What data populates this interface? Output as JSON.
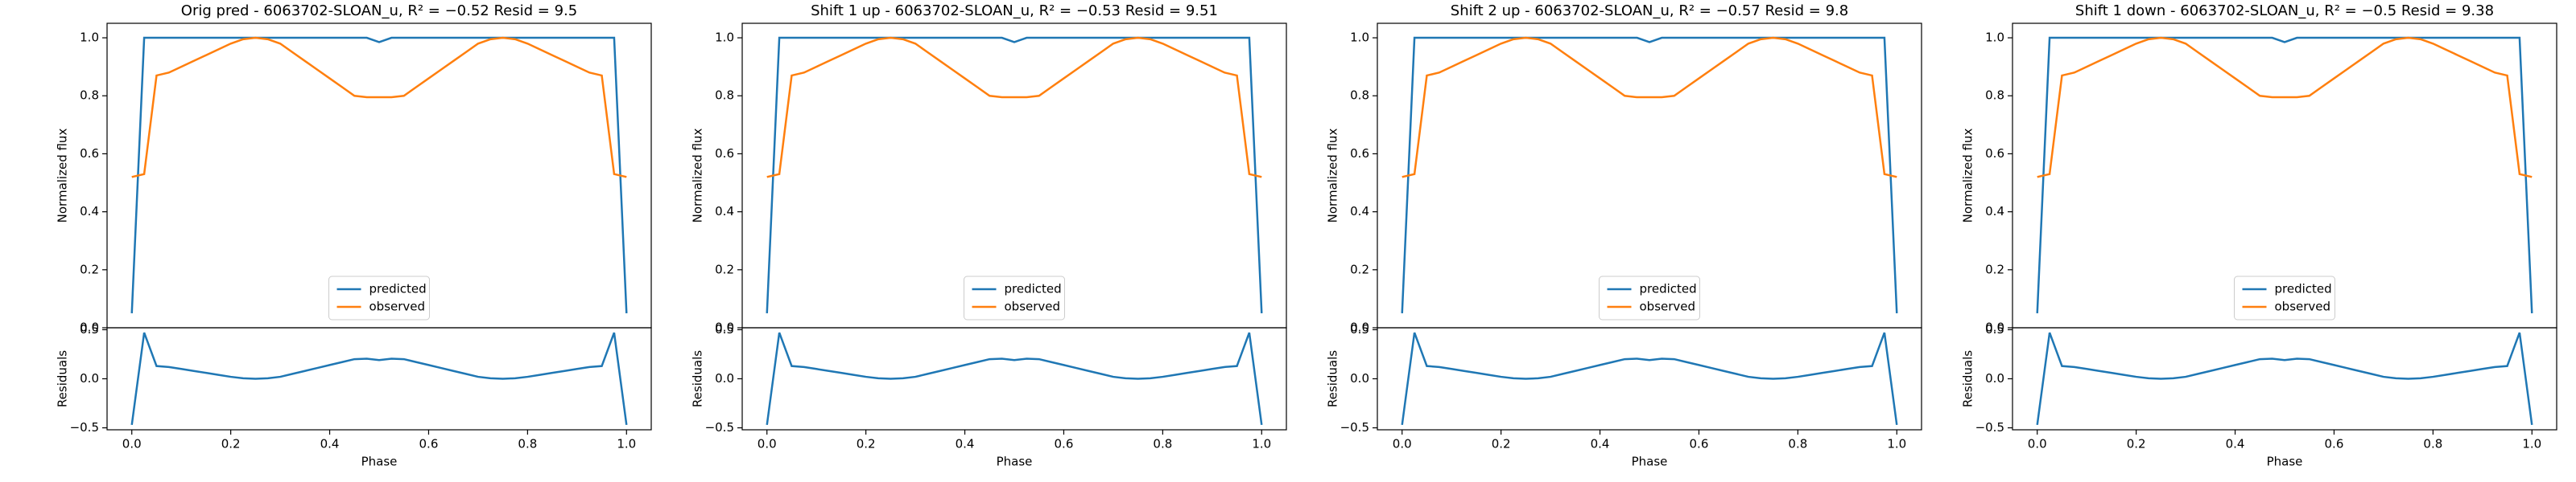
{
  "chart_data": [
    {
      "type": "line",
      "title": "Orig pred - 6063702-SLOAN_u, R² = −0.52 Resid = 9.5",
      "y_label": "Normalized flux",
      "legend": "lower center",
      "x": [
        0,
        0.025,
        0.05,
        0.075,
        0.1,
        0.125,
        0.15,
        0.175,
        0.2,
        0.225,
        0.25,
        0.275,
        0.3,
        0.325,
        0.35,
        0.375,
        0.4,
        0.425,
        0.45,
        0.475,
        0.5,
        0.525,
        0.55,
        0.575,
        0.6,
        0.625,
        0.65,
        0.675,
        0.7,
        0.725,
        0.75,
        0.775,
        0.8,
        0.825,
        0.85,
        0.875,
        0.9,
        0.925,
        0.95,
        0.975,
        1
      ],
      "series": [
        {
          "name": "predicted",
          "color": "#1f77b4",
          "values": [
            0.05,
            1,
            1,
            1,
            1,
            1,
            1,
            1,
            1,
            1,
            1,
            1,
            1,
            1,
            1,
            1,
            1,
            1,
            1,
            1,
            0.985,
            1,
            1,
            1,
            1,
            1,
            1,
            1,
            1,
            1,
            1,
            1,
            1,
            1,
            1,
            1,
            1,
            1,
            1,
            1,
            0.05
          ]
        },
        {
          "name": "observed",
          "color": "#ff7f0e",
          "values": [
            0.52,
            0.53,
            0.87,
            0.88,
            0.9,
            0.92,
            0.94,
            0.96,
            0.98,
            0.995,
            1,
            0.995,
            0.98,
            0.95,
            0.92,
            0.89,
            0.86,
            0.83,
            0.8,
            0.795,
            0.795,
            0.795,
            0.8,
            0.83,
            0.86,
            0.89,
            0.92,
            0.95,
            0.98,
            0.995,
            1,
            0.995,
            0.98,
            0.96,
            0.94,
            0.92,
            0.9,
            0.88,
            0.87,
            0.53,
            0.52
          ]
        }
      ],
      "xlim": [
        -0.05,
        1.05
      ],
      "ylim": [
        0,
        1.05
      ],
      "yticks": [
        {
          "value": 0,
          "label": "0.0"
        },
        0.2,
        0.4,
        0.6,
        0.8,
        {
          "value": 1,
          "label": "1.0"
        }
      ]
    },
    {
      "type": "line",
      "x_label": "Phase",
      "y_label": "Residuals",
      "x": [
        0,
        0.025,
        0.05,
        0.075,
        0.1,
        0.125,
        0.15,
        0.175,
        0.2,
        0.225,
        0.25,
        0.275,
        0.3,
        0.325,
        0.35,
        0.375,
        0.4,
        0.425,
        0.45,
        0.475,
        0.5,
        0.525,
        0.55,
        0.575,
        0.6,
        0.625,
        0.65,
        0.675,
        0.7,
        0.725,
        0.75,
        0.775,
        0.8,
        0.825,
        0.85,
        0.875,
        0.9,
        0.925,
        0.95,
        0.975,
        1
      ],
      "series": [
        {
          "color": "#1f77b4",
          "values": [
            -0.47,
            0.47,
            0.13,
            0.12,
            0.1,
            0.08,
            0.06,
            0.04,
            0.02,
            0.005,
            0,
            0.005,
            0.02,
            0.05,
            0.08,
            0.11,
            0.14,
            0.17,
            0.2,
            0.205,
            0.19,
            0.205,
            0.2,
            0.17,
            0.14,
            0.11,
            0.08,
            0.05,
            0.02,
            0.005,
            0,
            0.005,
            0.02,
            0.04,
            0.06,
            0.08,
            0.1,
            0.12,
            0.13,
            0.47,
            -0.47
          ]
        }
      ],
      "xlim": [
        -0.05,
        1.05
      ],
      "xticks": [
        {
          "value": 0,
          "label": "0.0"
        },
        0.2,
        0.4,
        0.6,
        0.8,
        {
          "value": 1,
          "label": "1.0"
        }
      ],
      "ylim": [
        -0.52,
        0.52
      ],
      "yticks": [
        {
          "value": -0.5,
          "label": "−0.5"
        },
        {
          "value": 0,
          "label": "0.0"
        },
        0.5
      ]
    },
    {
      "type": "line",
      "title": "Shift 1 up - 6063702-SLOAN_u, R² = −0.53 Resid = 9.51",
      "y_label": "Normalized flux",
      "legend": "lower center",
      "x": [
        0,
        0.025,
        0.05,
        0.075,
        0.1,
        0.125,
        0.15,
        0.175,
        0.2,
        0.225,
        0.25,
        0.275,
        0.3,
        0.325,
        0.35,
        0.375,
        0.4,
        0.425,
        0.45,
        0.475,
        0.5,
        0.525,
        0.55,
        0.575,
        0.6,
        0.625,
        0.65,
        0.675,
        0.7,
        0.725,
        0.75,
        0.775,
        0.8,
        0.825,
        0.85,
        0.875,
        0.9,
        0.925,
        0.95,
        0.975,
        1
      ],
      "series": [
        {
          "name": "predicted",
          "color": "#1f77b4",
          "values": [
            0.05,
            1,
            1,
            1,
            1,
            1,
            1,
            1,
            1,
            1,
            1,
            1,
            1,
            1,
            1,
            1,
            1,
            1,
            1,
            1,
            0.985,
            1,
            1,
            1,
            1,
            1,
            1,
            1,
            1,
            1,
            1,
            1,
            1,
            1,
            1,
            1,
            1,
            1,
            1,
            1,
            0.05
          ]
        },
        {
          "name": "observed",
          "color": "#ff7f0e",
          "values": [
            0.52,
            0.53,
            0.87,
            0.88,
            0.9,
            0.92,
            0.94,
            0.96,
            0.98,
            0.995,
            1,
            0.995,
            0.98,
            0.95,
            0.92,
            0.89,
            0.86,
            0.83,
            0.8,
            0.795,
            0.795,
            0.795,
            0.8,
            0.83,
            0.86,
            0.89,
            0.92,
            0.95,
            0.98,
            0.995,
            1,
            0.995,
            0.98,
            0.96,
            0.94,
            0.92,
            0.9,
            0.88,
            0.87,
            0.53,
            0.52
          ]
        }
      ],
      "xlim": [
        -0.05,
        1.05
      ],
      "ylim": [
        0,
        1.05
      ],
      "yticks": [
        {
          "value": 0,
          "label": "0.0"
        },
        0.2,
        0.4,
        0.6,
        0.8,
        {
          "value": 1,
          "label": "1.0"
        }
      ]
    },
    {
      "type": "line",
      "x_label": "Phase",
      "y_label": "Residuals",
      "x": [
        0,
        0.025,
        0.05,
        0.075,
        0.1,
        0.125,
        0.15,
        0.175,
        0.2,
        0.225,
        0.25,
        0.275,
        0.3,
        0.325,
        0.35,
        0.375,
        0.4,
        0.425,
        0.45,
        0.475,
        0.5,
        0.525,
        0.55,
        0.575,
        0.6,
        0.625,
        0.65,
        0.675,
        0.7,
        0.725,
        0.75,
        0.775,
        0.8,
        0.825,
        0.85,
        0.875,
        0.9,
        0.925,
        0.95,
        0.975,
        1
      ],
      "series": [
        {
          "color": "#1f77b4",
          "values": [
            -0.47,
            0.47,
            0.13,
            0.12,
            0.1,
            0.08,
            0.06,
            0.04,
            0.02,
            0.005,
            0,
            0.005,
            0.02,
            0.05,
            0.08,
            0.11,
            0.14,
            0.17,
            0.2,
            0.205,
            0.19,
            0.205,
            0.2,
            0.17,
            0.14,
            0.11,
            0.08,
            0.05,
            0.02,
            0.005,
            0,
            0.005,
            0.02,
            0.04,
            0.06,
            0.08,
            0.1,
            0.12,
            0.13,
            0.47,
            -0.47
          ]
        }
      ],
      "xlim": [
        -0.05,
        1.05
      ],
      "xticks": [
        {
          "value": 0,
          "label": "0.0"
        },
        0.2,
        0.4,
        0.6,
        0.8,
        {
          "value": 1,
          "label": "1.0"
        }
      ],
      "ylim": [
        -0.52,
        0.52
      ],
      "yticks": [
        {
          "value": -0.5,
          "label": "−0.5"
        },
        {
          "value": 0,
          "label": "0.0"
        },
        0.5
      ]
    },
    {
      "type": "line",
      "title": "Shift 2 up - 6063702-SLOAN_u, R² = −0.57 Resid = 9.8",
      "y_label": "Normalized flux",
      "legend": "lower center",
      "x": [
        0,
        0.025,
        0.05,
        0.075,
        0.1,
        0.125,
        0.15,
        0.175,
        0.2,
        0.225,
        0.25,
        0.275,
        0.3,
        0.325,
        0.35,
        0.375,
        0.4,
        0.425,
        0.45,
        0.475,
        0.5,
        0.525,
        0.55,
        0.575,
        0.6,
        0.625,
        0.65,
        0.675,
        0.7,
        0.725,
        0.75,
        0.775,
        0.8,
        0.825,
        0.85,
        0.875,
        0.9,
        0.925,
        0.95,
        0.975,
        1
      ],
      "series": [
        {
          "name": "predicted",
          "color": "#1f77b4",
          "values": [
            0.05,
            1,
            1,
            1,
            1,
            1,
            1,
            1,
            1,
            1,
            1,
            1,
            1,
            1,
            1,
            1,
            1,
            1,
            1,
            1,
            0.985,
            1,
            1,
            1,
            1,
            1,
            1,
            1,
            1,
            1,
            1,
            1,
            1,
            1,
            1,
            1,
            1,
            1,
            1,
            1,
            0.05
          ]
        },
        {
          "name": "observed",
          "color": "#ff7f0e",
          "values": [
            0.52,
            0.53,
            0.87,
            0.88,
            0.9,
            0.92,
            0.94,
            0.96,
            0.98,
            0.995,
            1,
            0.995,
            0.98,
            0.95,
            0.92,
            0.89,
            0.86,
            0.83,
            0.8,
            0.795,
            0.795,
            0.795,
            0.8,
            0.83,
            0.86,
            0.89,
            0.92,
            0.95,
            0.98,
            0.995,
            1,
            0.995,
            0.98,
            0.96,
            0.94,
            0.92,
            0.9,
            0.88,
            0.87,
            0.53,
            0.52
          ]
        }
      ],
      "xlim": [
        -0.05,
        1.05
      ],
      "ylim": [
        0,
        1.05
      ],
      "yticks": [
        {
          "value": 0,
          "label": "0.0"
        },
        0.2,
        0.4,
        0.6,
        0.8,
        {
          "value": 1,
          "label": "1.0"
        }
      ]
    },
    {
      "type": "line",
      "x_label": "Phase",
      "y_label": "Residuals",
      "x": [
        0,
        0.025,
        0.05,
        0.075,
        0.1,
        0.125,
        0.15,
        0.175,
        0.2,
        0.225,
        0.25,
        0.275,
        0.3,
        0.325,
        0.35,
        0.375,
        0.4,
        0.425,
        0.45,
        0.475,
        0.5,
        0.525,
        0.55,
        0.575,
        0.6,
        0.625,
        0.65,
        0.675,
        0.7,
        0.725,
        0.75,
        0.775,
        0.8,
        0.825,
        0.85,
        0.875,
        0.9,
        0.925,
        0.95,
        0.975,
        1
      ],
      "series": [
        {
          "color": "#1f77b4",
          "values": [
            -0.47,
            0.47,
            0.13,
            0.12,
            0.1,
            0.08,
            0.06,
            0.04,
            0.02,
            0.005,
            0,
            0.005,
            0.02,
            0.05,
            0.08,
            0.11,
            0.14,
            0.17,
            0.2,
            0.205,
            0.19,
            0.205,
            0.2,
            0.17,
            0.14,
            0.11,
            0.08,
            0.05,
            0.02,
            0.005,
            0,
            0.005,
            0.02,
            0.04,
            0.06,
            0.08,
            0.1,
            0.12,
            0.13,
            0.47,
            -0.47
          ]
        }
      ],
      "xlim": [
        -0.05,
        1.05
      ],
      "xticks": [
        {
          "value": 0,
          "label": "0.0"
        },
        0.2,
        0.4,
        0.6,
        0.8,
        {
          "value": 1,
          "label": "1.0"
        }
      ],
      "ylim": [
        -0.52,
        0.52
      ],
      "yticks": [
        {
          "value": -0.5,
          "label": "−0.5"
        },
        {
          "value": 0,
          "label": "0.0"
        },
        0.5
      ]
    },
    {
      "type": "line",
      "title": "Shift 1 down - 6063702-SLOAN_u, R² = −0.5 Resid = 9.38",
      "y_label": "Normalized flux",
      "legend": "lower center",
      "x": [
        0,
        0.025,
        0.05,
        0.075,
        0.1,
        0.125,
        0.15,
        0.175,
        0.2,
        0.225,
        0.25,
        0.275,
        0.3,
        0.325,
        0.35,
        0.375,
        0.4,
        0.425,
        0.45,
        0.475,
        0.5,
        0.525,
        0.55,
        0.575,
        0.6,
        0.625,
        0.65,
        0.675,
        0.7,
        0.725,
        0.75,
        0.775,
        0.8,
        0.825,
        0.85,
        0.875,
        0.9,
        0.925,
        0.95,
        0.975,
        1
      ],
      "series": [
        {
          "name": "predicted",
          "color": "#1f77b4",
          "values": [
            0.05,
            1,
            1,
            1,
            1,
            1,
            1,
            1,
            1,
            1,
            1,
            1,
            1,
            1,
            1,
            1,
            1,
            1,
            1,
            1,
            0.985,
            1,
            1,
            1,
            1,
            1,
            1,
            1,
            1,
            1,
            1,
            1,
            1,
            1,
            1,
            1,
            1,
            1,
            1,
            1,
            0.05
          ]
        },
        {
          "name": "observed",
          "color": "#ff7f0e",
          "values": [
            0.52,
            0.53,
            0.87,
            0.88,
            0.9,
            0.92,
            0.94,
            0.96,
            0.98,
            0.995,
            1,
            0.995,
            0.98,
            0.95,
            0.92,
            0.89,
            0.86,
            0.83,
            0.8,
            0.795,
            0.795,
            0.795,
            0.8,
            0.83,
            0.86,
            0.89,
            0.92,
            0.95,
            0.98,
            0.995,
            1,
            0.995,
            0.98,
            0.96,
            0.94,
            0.92,
            0.9,
            0.88,
            0.87,
            0.53,
            0.52
          ]
        }
      ],
      "xlim": [
        -0.05,
        1.05
      ],
      "ylim": [
        0,
        1.05
      ],
      "yticks": [
        {
          "value": 0,
          "label": "0.0"
        },
        0.2,
        0.4,
        0.6,
        0.8,
        {
          "value": 1,
          "label": "1.0"
        }
      ]
    },
    {
      "type": "line",
      "x_label": "Phase",
      "y_label": "Residuals",
      "x": [
        0,
        0.025,
        0.05,
        0.075,
        0.1,
        0.125,
        0.15,
        0.175,
        0.2,
        0.225,
        0.25,
        0.275,
        0.3,
        0.325,
        0.35,
        0.375,
        0.4,
        0.425,
        0.45,
        0.475,
        0.5,
        0.525,
        0.55,
        0.575,
        0.6,
        0.625,
        0.65,
        0.675,
        0.7,
        0.725,
        0.75,
        0.775,
        0.8,
        0.825,
        0.85,
        0.875,
        0.9,
        0.925,
        0.95,
        0.975,
        1
      ],
      "series": [
        {
          "color": "#1f77b4",
          "values": [
            -0.47,
            0.47,
            0.13,
            0.12,
            0.1,
            0.08,
            0.06,
            0.04,
            0.02,
            0.005,
            0,
            0.005,
            0.02,
            0.05,
            0.08,
            0.11,
            0.14,
            0.17,
            0.2,
            0.205,
            0.19,
            0.205,
            0.2,
            0.17,
            0.14,
            0.11,
            0.08,
            0.05,
            0.02,
            0.005,
            0,
            0.005,
            0.02,
            0.04,
            0.06,
            0.08,
            0.1,
            0.12,
            0.13,
            0.47,
            -0.47
          ]
        }
      ],
      "xlim": [
        -0.05,
        1.05
      ],
      "xticks": [
        {
          "value": 0,
          "label": "0.0"
        },
        0.2,
        0.4,
        0.6,
        0.8,
        {
          "value": 1,
          "label": "1.0"
        }
      ],
      "ylim": [
        -0.52,
        0.52
      ],
      "yticks": [
        {
          "value": -0.5,
          "label": "−0.5"
        },
        {
          "value": 0,
          "label": "0.0"
        },
        0.5
      ]
    }
  ]
}
